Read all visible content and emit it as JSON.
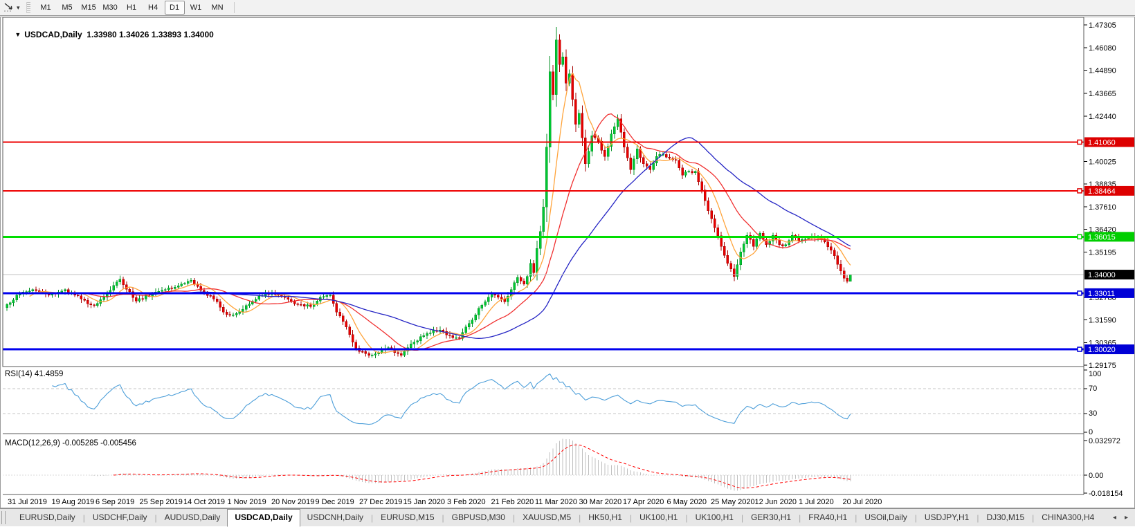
{
  "toolbar": {
    "dropdown_caret": "▾",
    "timeframes": [
      "M1",
      "M5",
      "M15",
      "M30",
      "H1",
      "H4",
      "D1",
      "W1",
      "MN"
    ],
    "active_timeframe": "D1"
  },
  "chart_header": {
    "menu_caret": "▼",
    "symbol": "USDCAD,Daily",
    "ohlc": "1.33980 1.34026 1.33893 1.34000"
  },
  "price_scale": {
    "ticks": [
      "1.47305",
      "1.46080",
      "1.44890",
      "1.43665",
      "1.42440",
      "1.40025",
      "1.38835",
      "1.37610",
      "1.36420",
      "1.35195",
      "1.32780",
      "1.31590",
      "1.30365",
      "1.29175"
    ],
    "badges": [
      {
        "label": "1.41060",
        "price": 1.4106,
        "bg": "#dd0000",
        "handle": true
      },
      {
        "label": "1.38464",
        "price": 1.38464,
        "bg": "#dd0000",
        "handle": true
      },
      {
        "label": "1.36015",
        "price": 1.36015,
        "bg": "#00ce00",
        "handle": true
      },
      {
        "label": "1.34000",
        "price": 1.34,
        "bg": "#000000",
        "handle": false
      },
      {
        "label": "1.33011",
        "price": 1.33011,
        "bg": "#0000d6",
        "handle": true
      },
      {
        "label": "1.30020",
        "price": 1.3002,
        "bg": "#0000d6",
        "handle": true
      }
    ]
  },
  "rsi_panel": {
    "label": "RSI(14) 41.4859",
    "value": 41.4859,
    "line_color": "#4c9ed9",
    "ticks": [
      {
        "v": 100,
        "label": "100",
        "dashed": false
      },
      {
        "v": 70,
        "label": "70",
        "dashed": true
      },
      {
        "v": 30,
        "label": "30",
        "dashed": true
      },
      {
        "v": 0,
        "label": "0",
        "dashed": false
      }
    ]
  },
  "macd_panel": {
    "label": "MACD(12,26,9) -0.005285 -0.005456",
    "main_value": -0.005285,
    "signal_value": -0.005456,
    "hist_color": "#bfbfbf",
    "signal_color": "#ff0000",
    "ticks": [
      {
        "v": 0.032972,
        "label": "0.032972"
      },
      {
        "v": 0,
        "label": "0.00"
      },
      {
        "v": -0.018154,
        "label": "-0.018154"
      }
    ]
  },
  "date_axis": [
    "31 Jul 2019",
    "19 Aug 2019",
    "6 Sep 2019",
    "25 Sep 2019",
    "14 Oct 2019",
    "1 Nov 2019",
    "20 Nov 2019",
    "9 Dec 2019",
    "27 Dec 2019",
    "15 Jan 2020",
    "3 Feb 2020",
    "21 Feb 2020",
    "11 Mar 2020",
    "30 Mar 2020",
    "17 Apr 2020",
    "6 May 2020",
    "25 May 2020",
    "12 Jun 2020",
    "1 Jul 2020",
    "20 Jul 2020"
  ],
  "tabs": {
    "items": [
      "EURUSD,Daily",
      "USDCHF,Daily",
      "AUDUSD,Daily",
      "USDCAD,Daily",
      "USDCNH,Daily",
      "EURUSD,M15",
      "GBPUSD,M30",
      "XAUUSD,M5",
      "HK50,H1",
      "UK100,H1",
      "UK100,H1",
      "GER30,H1",
      "FRA40,H1",
      "USOil,Daily",
      "USDJPY,H1",
      "DJ30,M15",
      "CHINA300,H4"
    ],
    "active_index": 3,
    "scroll_left_icon": "◂",
    "scroll_right_icon": "▸"
  },
  "chart_data": {
    "type": "candlestick",
    "symbol": "USDCAD",
    "timeframe": "Daily",
    "title": "USDCAD,Daily",
    "x_labels": [
      "31 Jul 2019",
      "19 Aug 2019",
      "6 Sep 2019",
      "25 Sep 2019",
      "14 Oct 2019",
      "1 Nov 2019",
      "20 Nov 2019",
      "9 Dec 2019",
      "27 Dec 2019",
      "15 Jan 2020",
      "3 Feb 2020",
      "21 Feb 2020",
      "11 Mar 2020",
      "30 Mar 2020",
      "17 Apr 2020",
      "6 May 2020",
      "25 May 2020",
      "12 Jun 2020",
      "1 Jul 2020",
      "20 Jul 2020"
    ],
    "price_axis_range": [
      1.289,
      1.477
    ],
    "candle_count": 262,
    "bars_per_label": 13.4,
    "last_ohlc": {
      "o": 1.3398,
      "h": 1.34026,
      "l": 1.33893,
      "c": 1.34
    },
    "close_anchors": [
      [
        0,
        1.324
      ],
      [
        4,
        1.33
      ],
      [
        8,
        1.332
      ],
      [
        13,
        1.329
      ],
      [
        18,
        1.332
      ],
      [
        23,
        1.327
      ],
      [
        27,
        1.3235
      ],
      [
        31,
        1.33
      ],
      [
        35,
        1.3375
      ],
      [
        40,
        1.326
      ],
      [
        45,
        1.33
      ],
      [
        50,
        1.333
      ],
      [
        54,
        1.335
      ],
      [
        57,
        1.337
      ],
      [
        61,
        1.33
      ],
      [
        64,
        1.327
      ],
      [
        67,
        1.32
      ],
      [
        70,
        1.3185
      ],
      [
        74,
        1.3235
      ],
      [
        78,
        1.3285
      ],
      [
        80,
        1.3305
      ],
      [
        84,
        1.329
      ],
      [
        88,
        1.326
      ],
      [
        91,
        1.324
      ],
      [
        94,
        1.323
      ],
      [
        97,
        1.328
      ],
      [
        100,
        1.329
      ],
      [
        102,
        1.32
      ],
      [
        104,
        1.315
      ],
      [
        106,
        1.308
      ],
      [
        107,
        1.304
      ],
      [
        109,
        1.299
      ],
      [
        112,
        1.297
      ],
      [
        115,
        1.2985
      ],
      [
        118,
        1.301
      ],
      [
        120,
        1.2985
      ],
      [
        122,
        1.297
      ],
      [
        125,
        1.303
      ],
      [
        128,
        1.307
      ],
      [
        131,
        1.309
      ],
      [
        134,
        1.3105
      ],
      [
        137,
        1.3075
      ],
      [
        140,
        1.306
      ],
      [
        143,
        1.314
      ],
      [
        146,
        1.322
      ],
      [
        148,
        1.3255
      ],
      [
        150,
        1.33
      ],
      [
        152,
        1.328
      ],
      [
        154,
        1.3255
      ],
      [
        156,
        1.332
      ],
      [
        158,
        1.3385
      ],
      [
        160,
        1.335
      ],
      [
        161,
        1.339
      ],
      [
        162,
        1.346
      ],
      [
        163,
        1.341
      ],
      [
        164,
        1.354
      ],
      [
        165,
        1.363
      ],
      [
        166,
        1.376
      ],
      [
        167,
        1.408
      ],
      [
        168,
        1.448
      ],
      [
        169,
        1.436
      ],
      [
        170,
        1.465
      ],
      [
        171,
        1.452
      ],
      [
        172,
        1.456
      ],
      [
        173,
        1.442
      ],
      [
        174,
        1.447
      ],
      [
        176,
        1.42
      ],
      [
        177,
        1.426
      ],
      [
        179,
        1.399
      ],
      [
        181,
        1.414
      ],
      [
        183,
        1.411
      ],
      [
        185,
        1.403
      ],
      [
        187,
        1.415
      ],
      [
        189,
        1.423
      ],
      [
        191,
        1.408
      ],
      [
        193,
        1.396
      ],
      [
        195,
        1.407
      ],
      [
        197,
        1.399
      ],
      [
        199,
        1.396
      ],
      [
        201,
        1.403
      ],
      [
        203,
        1.404
      ],
      [
        205,
        1.402
      ],
      [
        207,
        1.401
      ],
      [
        209,
        1.393
      ],
      [
        211,
        1.395
      ],
      [
        213,
        1.395
      ],
      [
        215,
        1.385
      ],
      [
        217,
        1.374
      ],
      [
        219,
        1.365
      ],
      [
        221,
        1.355
      ],
      [
        223,
        1.346
      ],
      [
        225,
        1.339
      ],
      [
        227,
        1.352
      ],
      [
        229,
        1.361
      ],
      [
        231,
        1.355
      ],
      [
        233,
        1.362
      ],
      [
        235,
        1.356
      ],
      [
        237,
        1.361
      ],
      [
        239,
        1.356
      ],
      [
        241,
        1.356
      ],
      [
        243,
        1.361
      ],
      [
        245,
        1.358
      ],
      [
        247,
        1.359
      ],
      [
        249,
        1.3605
      ],
      [
        251,
        1.36
      ],
      [
        253,
        1.3575
      ],
      [
        255,
        1.353
      ],
      [
        256,
        1.35
      ],
      [
        257,
        1.3455
      ],
      [
        258,
        1.342
      ],
      [
        259,
        1.338
      ],
      [
        260,
        1.3365
      ],
      [
        261,
        1.34
      ]
    ],
    "candle_up_color": "#00c832",
    "candle_up_border": "#008f22",
    "candle_down_color": "#e80000",
    "candle_down_border": "#a60000",
    "overlays": [
      {
        "name": "MA fast",
        "period": 8,
        "color": "#ffa43b"
      },
      {
        "name": "MA medium",
        "period": 20,
        "color": "#f03030"
      },
      {
        "name": "MA slow",
        "period": 45,
        "color": "#2424c4"
      }
    ],
    "h_lines": [
      {
        "price": 1.4106,
        "color": "#ee0000",
        "width": 2,
        "name": "resistance-1"
      },
      {
        "price": 1.38464,
        "color": "#ee0000",
        "width": 2,
        "name": "resistance-2"
      },
      {
        "price": 1.36015,
        "color": "#00dd00",
        "width": 3,
        "name": "pivot-green"
      },
      {
        "price": 1.34,
        "color": "#c0c0c0",
        "width": 1,
        "name": "current-price"
      },
      {
        "price": 1.33011,
        "color": "#0000ee",
        "width": 3,
        "name": "support-1"
      },
      {
        "price": 1.3002,
        "color": "#0000ee",
        "width": 3,
        "name": "support-2"
      }
    ],
    "indicators": [
      {
        "name": "RSI",
        "params": [
          14
        ],
        "current": 41.4859,
        "levels": [
          70,
          30
        ],
        "range": [
          0,
          100
        ]
      },
      {
        "name": "MACD",
        "params": [
          12,
          26,
          9
        ],
        "main": -0.005285,
        "signal": -0.005456,
        "range": [
          -0.018154,
          0.032972
        ]
      }
    ]
  }
}
